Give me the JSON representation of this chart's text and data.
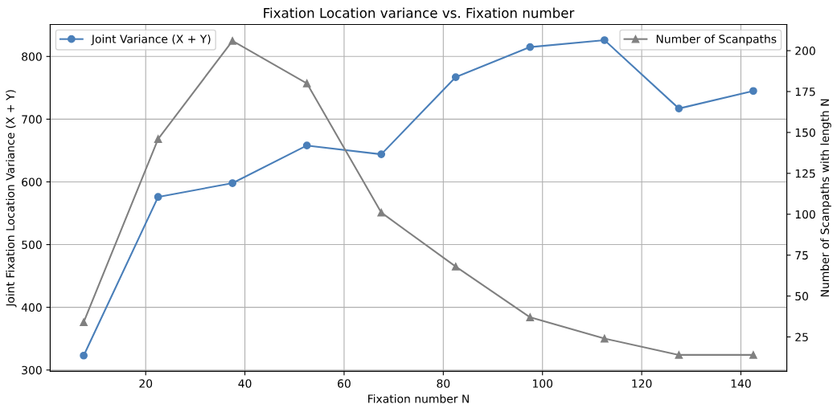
{
  "chart_data": {
    "type": "line",
    "title": "Fixation Location variance vs. Fixation number",
    "xlabel": "Fixation number N",
    "ylabel": "Joint Fixation Location Variance (X + Y)",
    "y2label": "Number of Scanpaths with length N",
    "x": [
      7.5,
      22.5,
      37.5,
      52.5,
      67.5,
      82.5,
      97.5,
      112.5,
      127.5,
      142.5
    ],
    "series": [
      {
        "name": "Joint Variance (X + Y)",
        "color": "#4a7fb9",
        "marker": "circle",
        "values": [
          323,
          576,
          598,
          658,
          644,
          767,
          815,
          826,
          717,
          745
        ]
      },
      {
        "name": "Number of Scanpaths",
        "color": "#808080",
        "marker": "triangle",
        "axis": "y2",
        "values": [
          34,
          146,
          206,
          180,
          101,
          68,
          37,
          24,
          14,
          14
        ]
      }
    ],
    "xlim": [
      0.75,
      149.25
    ],
    "xticks": [
      20,
      40,
      60,
      80,
      100,
      120,
      140
    ],
    "ylim": [
      298,
      851
    ],
    "yticks": [
      300,
      400,
      500,
      600,
      700,
      800
    ],
    "y2lim": [
      4,
      216
    ],
    "y2ticks": [
      25,
      50,
      75,
      100,
      125,
      150,
      175,
      200
    ],
    "grid": true,
    "legend": "top"
  }
}
